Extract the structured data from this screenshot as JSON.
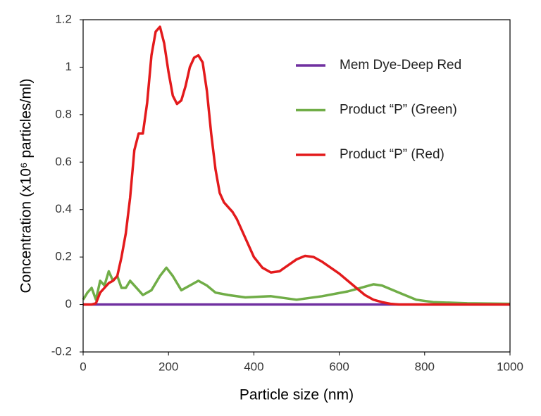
{
  "chart_data": {
    "type": "line",
    "x_label": "Particle size (nm)",
    "y_label": "Concentration (x10⁶ particles/ml)",
    "xlim": [
      0,
      1000
    ],
    "xticks": [
      0,
      200,
      400,
      600,
      800,
      1000
    ],
    "ylim": [
      -0.2,
      1.2
    ],
    "yticks": [
      -0.2,
      0,
      0.2,
      0.4,
      0.6,
      0.8,
      1,
      1.2
    ],
    "legend": "upper right",
    "series": [
      {
        "name": "Mem Dye-Deep Red",
        "color": "#7030a0",
        "x": [
          0,
          1000
        ],
        "values": [
          0,
          0
        ]
      },
      {
        "name": "Product “P” (Green)",
        "color": "#70ad47",
        "x": [
          0,
          10,
          20,
          30,
          40,
          50,
          60,
          70,
          80,
          90,
          100,
          110,
          120,
          140,
          160,
          180,
          195,
          210,
          230,
          250,
          270,
          290,
          310,
          340,
          380,
          440,
          500,
          560,
          620,
          660,
          680,
          700,
          740,
          780,
          820,
          900,
          1000
        ],
        "values": [
          0.02,
          0.05,
          0.07,
          0.02,
          0.1,
          0.08,
          0.14,
          0.1,
          0.12,
          0.07,
          0.07,
          0.1,
          0.08,
          0.04,
          0.06,
          0.12,
          0.155,
          0.12,
          0.06,
          0.08,
          0.1,
          0.08,
          0.05,
          0.04,
          0.03,
          0.035,
          0.02,
          0.035,
          0.055,
          0.075,
          0.085,
          0.08,
          0.05,
          0.02,
          0.01,
          0.005,
          0.003
        ]
      },
      {
        "name": "Product “P” (Red)",
        "color": "#e31a1c",
        "x": [
          0,
          20,
          30,
          40,
          50,
          60,
          70,
          80,
          90,
          100,
          110,
          120,
          130,
          140,
          150,
          160,
          170,
          180,
          190,
          200,
          210,
          220,
          230,
          240,
          250,
          260,
          270,
          280,
          290,
          300,
          310,
          320,
          330,
          340,
          350,
          360,
          380,
          400,
          420,
          440,
          460,
          480,
          500,
          520,
          540,
          560,
          580,
          600,
          620,
          640,
          660,
          680,
          700,
          720,
          740,
          800,
          1000
        ],
        "values": [
          0,
          0,
          0.005,
          0.05,
          0.07,
          0.09,
          0.1,
          0.12,
          0.2,
          0.3,
          0.45,
          0.65,
          0.72,
          0.72,
          0.85,
          1.05,
          1.15,
          1.17,
          1.1,
          0.98,
          0.88,
          0.845,
          0.86,
          0.92,
          1.0,
          1.04,
          1.05,
          1.02,
          0.9,
          0.72,
          0.57,
          0.47,
          0.43,
          0.41,
          0.39,
          0.36,
          0.28,
          0.2,
          0.155,
          0.135,
          0.14,
          0.165,
          0.19,
          0.205,
          0.2,
          0.18,
          0.155,
          0.13,
          0.1,
          0.07,
          0.04,
          0.02,
          0.01,
          0.003,
          0,
          0,
          0
        ]
      }
    ]
  }
}
